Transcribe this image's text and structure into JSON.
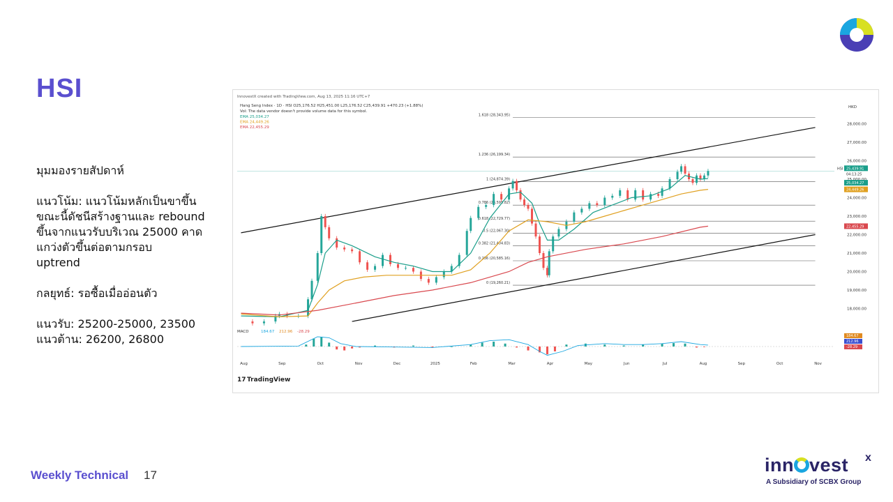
{
  "slide": {
    "title": "HSI",
    "footer_label": "Weekly Technical",
    "page_number": "17"
  },
  "commentary": {
    "heading": "มุมมองรายสัปดาห์",
    "trend_lines": [
      "แนวโน้ม: แนวโน้มหลักเป็นขาขึ้น",
      "ขณะนี้ดัชนีสร้างฐานและ rebound",
      "ขึ้นจากแนวรับบริเวณ 25000 คาด",
      "แกว่งตัวขึ้นต่อตามกรอบ",
      "uptrend"
    ],
    "strategy": "กลยุทธ์: รอซื้อเมื่ออ่อนตัว",
    "support": "แนวรับ: 25200-25000, 23500",
    "resistance": "แนวต้าน: 26200, 26800"
  },
  "brand": {
    "name_pre": "inn",
    "name_post": "vest",
    "mark": "x",
    "subtitle": "A Subsidiary of SCBX Group"
  },
  "logo": {
    "colors": [
      "#1aa6e0",
      "#d8e021",
      "#4a3fb5",
      "#ffffff"
    ]
  },
  "colors": {
    "accent": "#5a4fcf",
    "brand": "#2a2466",
    "ema_fast": "#1a9e8a",
    "ema_mid": "#e0a020",
    "ema_slow": "#d9484e",
    "candle_up": "#26a69a",
    "candle_down": "#ef5350"
  },
  "chart_data": {
    "type": "line",
    "header": {
      "credit": "InnovestX created with TradingView.com, Aug 13, 2025 11:16 UTC+7",
      "symbol_line": "Hang Seng Index · 1D · HSI  O25,176.52  H25,451.00  L25,176.52  C25,439.91  +470.23 (+1.88%)",
      "volume_note": "Vol: The data vendor doesn't provide volume data for this symbol.",
      "ema_lines": [
        "EMA  25,034.27",
        "EMA  24,449.26",
        "EMA  22,455.29"
      ],
      "currency": "HKD",
      "watermark": "TradingView"
    },
    "y_axis": {
      "range": [
        17000,
        29000
      ],
      "ticks": [
        "28,000.00",
        "27,000.00",
        "26,000.00",
        "25,000.00",
        "24,000.00",
        "23,000.00",
        "22,000.00",
        "21,000.00",
        "20,000.00",
        "19,000.00",
        "18,000.00"
      ],
      "tick_values": [
        28000,
        27000,
        26000,
        25000,
        24000,
        23000,
        22000,
        21000,
        20000,
        19000,
        18000
      ]
    },
    "x_axis": {
      "labels": [
        "Aug",
        "Sep",
        "Oct",
        "Nov",
        "Dec",
        "2025",
        "Feb",
        "Mar",
        "Apr",
        "May",
        "Jun",
        "Jul",
        "Aug",
        "Sep",
        "Oct",
        "Nov"
      ],
      "months_index": [
        0,
        1,
        2,
        3,
        4,
        5,
        6,
        7,
        8,
        9,
        10,
        11,
        12,
        13,
        14,
        15
      ]
    },
    "fibonacci": [
      {
        "label": "1.618 (28,343.95)",
        "value": 28343.95
      },
      {
        "label": "1.236 (26,199.34)",
        "value": 26199.34
      },
      {
        "label": "1 (24,874.39)",
        "value": 24874.39
      },
      {
        "label": "0.786 (23,595.82)",
        "value": 23595.82
      },
      {
        "label": "0.618 (22,729.77)",
        "value": 22729.77
      },
      {
        "label": "0.5 (22,067.30)",
        "value": 22067.3
      },
      {
        "label": "0.382 (21,404.83)",
        "value": 21404.83
      },
      {
        "label": "0.236 (20,585.16)",
        "value": 20585.16
      },
      {
        "label": "0 (19,260.21)",
        "value": 19260.21
      }
    ],
    "price_tags": [
      {
        "label": "HSI",
        "value": "25,439.91",
        "extra": "04:13:25",
        "color": "#1a9e8a",
        "y": 25439.91
      },
      {
        "label": "",
        "value": "25,034.27",
        "color": "#1a9e8a",
        "y": 25034.27
      },
      {
        "label": "",
        "value": "24,449.26",
        "color": "#e0a020",
        "y": 24449.26
      },
      {
        "label": "",
        "value": "22,455.29",
        "color": "#d9484e",
        "y": 22455.29
      }
    ],
    "trendlines": [
      {
        "name": "upper",
        "x": [
          0,
          15.0
        ],
        "y": [
          22100,
          27800
        ]
      },
      {
        "name": "lower",
        "x": [
          2.9,
          15.0
        ],
        "y": [
          17300,
          22000
        ]
      }
    ],
    "series": [
      {
        "name": "HSI",
        "x": [
          0,
          0.3,
          0.6,
          0.9,
          1.0,
          1.2,
          1.5,
          1.75,
          1.85,
          2.0,
          2.1,
          2.2,
          2.3,
          2.5,
          2.7,
          2.9,
          3.1,
          3.3,
          3.5,
          3.7,
          3.9,
          4.1,
          4.3,
          4.5,
          4.7,
          4.9,
          5.1,
          5.3,
          5.5,
          5.7,
          5.9,
          6.0,
          6.2,
          6.4,
          6.6,
          6.8,
          7.0,
          7.1,
          7.2,
          7.3,
          7.4,
          7.5,
          7.6,
          7.7,
          7.8,
          7.9,
          8.0,
          8.05,
          8.15,
          8.3,
          8.5,
          8.7,
          8.9,
          9.1,
          9.3,
          9.5,
          9.7,
          9.9,
          10.1,
          10.3,
          10.5,
          10.7,
          10.9,
          11.0,
          11.2,
          11.4,
          11.5,
          11.6,
          11.7,
          11.8,
          11.9,
          12.0,
          12.1,
          12.2
        ],
        "y": [
          17300,
          17200,
          17300,
          17600,
          17700,
          17600,
          17600,
          18500,
          19500,
          21000,
          23000,
          22400,
          21800,
          21300,
          21200,
          21100,
          20500,
          20100,
          20300,
          20900,
          20400,
          20200,
          20200,
          20000,
          19600,
          19400,
          19700,
          20000,
          20300,
          20900,
          22200,
          22900,
          23500,
          23600,
          24200,
          23900,
          24500,
          24900,
          24400,
          23900,
          23600,
          23400,
          22600,
          21900,
          21000,
          20200,
          19800,
          21100,
          21900,
          22300,
          22700,
          23200,
          23400,
          23700,
          23600,
          24000,
          24100,
          24400,
          23900,
          24400,
          23900,
          24200,
          24100,
          24500,
          25000,
          25400,
          25700,
          25300,
          25000,
          24800,
          25200,
          25000,
          25200,
          25440
        ]
      },
      {
        "name": "EMA 25,034.27",
        "x": [
          0,
          1.0,
          1.75,
          2.0,
          2.2,
          2.5,
          2.9,
          3.5,
          4.0,
          4.5,
          5.0,
          5.5,
          6.0,
          6.5,
          7.0,
          7.3,
          7.6,
          7.8,
          8.0,
          8.3,
          8.7,
          9.2,
          9.7,
          10.2,
          10.7,
          11.2,
          11.6,
          12.0,
          12.2
        ],
        "y": [
          17600,
          17550,
          17900,
          19300,
          21000,
          21700,
          21400,
          20800,
          20500,
          20300,
          20000,
          20000,
          21000,
          22900,
          24200,
          24300,
          23700,
          22600,
          21700,
          21700,
          22300,
          23200,
          23600,
          24000,
          24100,
          24500,
          25200,
          25000,
          25034
        ]
      },
      {
        "name": "EMA 24,449.26",
        "x": [
          0,
          1.0,
          1.75,
          2.0,
          2.3,
          2.7,
          3.2,
          3.8,
          4.5,
          5.0,
          5.5,
          6.0,
          6.5,
          7.0,
          7.5,
          8.0,
          8.5,
          9.0,
          9.5,
          10.0,
          10.5,
          11.0,
          11.5,
          12.0,
          12.2
        ],
        "y": [
          17700,
          17550,
          17600,
          18300,
          19000,
          19500,
          19700,
          19800,
          19800,
          19800,
          19800,
          20100,
          21000,
          22200,
          22800,
          22700,
          22500,
          22700,
          23000,
          23300,
          23600,
          23900,
          24200,
          24400,
          24449
        ]
      },
      {
        "name": "EMA 22,455.29",
        "x": [
          0,
          1.0,
          2.0,
          3.0,
          4.0,
          5.0,
          6.0,
          7.0,
          7.5,
          8.0,
          9.0,
          10.0,
          11.0,
          12.0,
          12.2
        ],
        "y": [
          17750,
          17650,
          17900,
          18300,
          18700,
          19000,
          19400,
          20000,
          20500,
          20800,
          21200,
          21500,
          21900,
          22400,
          22455
        ]
      }
    ],
    "macd": {
      "label": "MACD",
      "values": [
        "184.67",
        "212.96",
        "-28.29"
      ],
      "histogram_x": [
        1.7,
        1.9,
        2.1,
        2.3,
        2.5,
        2.7,
        2.9,
        3.1,
        3.5,
        4.0,
        4.5,
        5.0,
        5.5,
        6.0,
        6.3,
        6.6,
        6.9,
        7.2,
        7.5,
        7.8,
        8.0,
        8.2,
        8.5,
        9.0,
        9.5,
        10.0,
        10.5,
        11.0,
        11.3,
        11.6,
        11.9,
        12.1
      ],
      "histogram_y": [
        0.2,
        0.8,
        1.0,
        0.4,
        -0.3,
        -0.4,
        -0.2,
        -0.1,
        0.1,
        -0.1,
        0.1,
        -0.1,
        0.0,
        0.2,
        0.4,
        0.5,
        0.3,
        -0.1,
        -0.4,
        -0.6,
        -0.8,
        -0.5,
        0.2,
        0.3,
        0.2,
        0.1,
        0.2,
        0.3,
        0.35,
        0.3,
        -0.1,
        -0.05
      ],
      "line_x": [
        0,
        1.5,
        2.0,
        2.3,
        2.6,
        3.0,
        4.0,
        5.0,
        6.0,
        6.5,
        7.0,
        7.5,
        7.8,
        8.0,
        8.4,
        8.8,
        9.5,
        10.0,
        10.5,
        11.0,
        11.5,
        12.0,
        12.2
      ],
      "line_y": [
        0,
        0.05,
        1.0,
        0.9,
        0.3,
        0.0,
        -0.05,
        -0.1,
        0.2,
        0.6,
        0.7,
        0.2,
        -0.5,
        -0.9,
        -0.5,
        0.1,
        0.3,
        0.2,
        0.2,
        0.3,
        0.5,
        0.2,
        0.15
      ]
    }
  }
}
